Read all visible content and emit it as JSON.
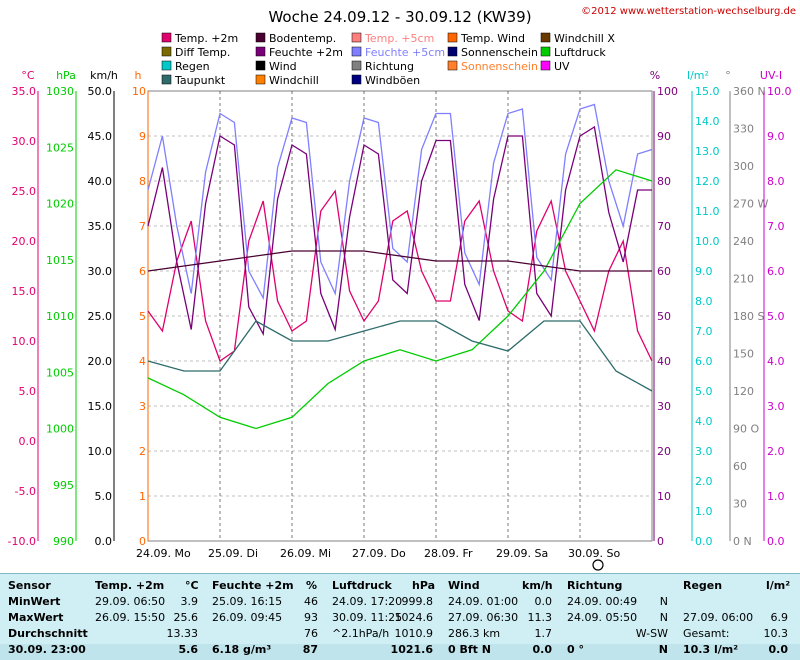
{
  "header": {
    "title": "Woche 24.09.12 - 30.09.12 (KW39)",
    "copyright": "©2012 www.wetterstation-wechselburg.de"
  },
  "legend": [
    {
      "label": "Temp. +2m",
      "color": "#e0006e"
    },
    {
      "label": "Bodentemp.",
      "color": "#4a0030"
    },
    {
      "label": "Temp. +5cm",
      "color": "#ff7f7f"
    },
    {
      "label": "Temp. Wind",
      "color": "#ff6600"
    },
    {
      "label": "Windchill X",
      "color": "#6b3a00"
    },
    {
      "label": "Diff Temp.",
      "color": "#7a6a00"
    },
    {
      "label": "Feuchte +2m",
      "color": "#7a007a"
    },
    {
      "label": "Feuchte +5cm",
      "color": "#7f7fff"
    },
    {
      "label": "Sonnenschein",
      "color": "#00006e"
    },
    {
      "label": "Luftdruck",
      "color": "#00cc00"
    },
    {
      "label": "Regen",
      "color": "#00c8c8"
    },
    {
      "label": "Wind",
      "color": "#000000"
    },
    {
      "label": "Richtung",
      "color": "#808080"
    },
    {
      "label": "Sonnenschein",
      "color": "#ff7f2a"
    },
    {
      "label": "UV",
      "color": "#ff00ff"
    },
    {
      "label": "Taupunkt",
      "color": "#2e6b6b"
    },
    {
      "label": "Windchill",
      "color": "#ff8000"
    },
    {
      "label": "Windböen",
      "color": "#000080"
    }
  ],
  "axes": {
    "units": {
      "celsius": "°C",
      "hpa": "hPa",
      "kmh": "km/h",
      "hours": "h",
      "percent": "%",
      "rain": "l/m²",
      "degree": "°",
      "uv": "UV-I"
    },
    "celsius_ticks": [
      "35.0",
      "30.0",
      "25.0",
      "20.0",
      "15.0",
      "10.0",
      "5.0",
      "0.0",
      "-5.0",
      "-10.0"
    ],
    "hpa_ticks": [
      "1030",
      "1025",
      "1020",
      "1015",
      "1010",
      "1005",
      "1000",
      "995",
      "990"
    ],
    "kmh_ticks": [
      "50.0",
      "45.0",
      "40.0",
      "35.0",
      "30.0",
      "25.0",
      "20.0",
      "15.0",
      "10.0",
      "5.0",
      "0.0"
    ],
    "hours_ticks": [
      "10",
      "9",
      "8",
      "7",
      "6",
      "5",
      "4",
      "3",
      "2",
      "1",
      "0"
    ],
    "percent_ticks": [
      "100",
      "90",
      "80",
      "70",
      "60",
      "50",
      "40",
      "30",
      "20",
      "10",
      "0"
    ],
    "rain_ticks": [
      "15.0",
      "14.0",
      "13.0",
      "12.0",
      "11.0",
      "10.0",
      "9.0",
      "8.0",
      "7.0",
      "6.0",
      "5.0",
      "4.0",
      "3.0",
      "2.0",
      "1.0",
      "0.0"
    ],
    "degree_ticks": [
      "360 N",
      "330",
      "300",
      "270 W",
      "240",
      "210",
      "180 S",
      "150",
      "120",
      "90  O",
      "60",
      "30",
      "0   N"
    ],
    "uv_ticks": [
      "10.0",
      "9.0",
      "8.0",
      "7.0",
      "6.0",
      "5.0",
      "4.0",
      "3.0",
      "2.0",
      "1.0",
      "0.0"
    ],
    "day_labels": [
      "24.09.  Mo",
      "25.09.  Di",
      "26.09.  Mi",
      "27.09.  Do",
      "28.09.  Fr",
      "29.09.  Sa",
      "30.09.  So"
    ]
  },
  "colors": {
    "celsius": "#e0006e",
    "hpa": "#00cc00",
    "kmh": "#000000",
    "hours": "#ff6600",
    "percent": "#7a007a",
    "rain": "#00c8c8",
    "degree": "#808080",
    "uv": "#cc00cc",
    "grid": "#808080",
    "dayline": "#404040"
  },
  "chart_data": {
    "type": "line",
    "title": "Woche 24.09.12 - 30.09.12 (KW39)",
    "x_range_days": [
      0,
      7
    ],
    "celsius_range": [
      -10,
      35
    ],
    "hpa_range": [
      990,
      1030
    ],
    "percent_range": [
      0,
      100
    ],
    "series": [
      {
        "name": "Temp. +2m",
        "axis": "celsius",
        "x": [
          0,
          0.2,
          0.4,
          0.6,
          0.8,
          1,
          1.2,
          1.4,
          1.6,
          1.8,
          2,
          2.2,
          2.4,
          2.6,
          2.8,
          3,
          3.2,
          3.4,
          3.6,
          3.8,
          4,
          4.2,
          4.4,
          4.6,
          4.8,
          5,
          5.2,
          5.4,
          5.6,
          5.8,
          6,
          6.2,
          6.4,
          6.6,
          6.8,
          7
        ],
        "values": [
          13,
          11,
          18,
          22,
          12,
          8,
          9,
          20,
          24,
          14,
          11,
          12,
          23,
          25,
          15,
          12,
          14,
          22,
          23,
          17,
          14,
          14,
          22,
          24,
          17,
          13,
          12,
          21,
          24,
          17,
          14,
          11,
          17,
          20,
          11,
          8
        ]
      },
      {
        "name": "Feuchte +2m",
        "axis": "percent",
        "x": [
          0,
          0.2,
          0.4,
          0.6,
          0.8,
          1,
          1.2,
          1.4,
          1.6,
          1.8,
          2,
          2.2,
          2.4,
          2.6,
          2.8,
          3,
          3.2,
          3.4,
          3.6,
          3.8,
          4,
          4.2,
          4.4,
          4.6,
          4.8,
          5,
          5.2,
          5.4,
          5.6,
          5.8,
          6,
          6.2,
          6.4,
          6.6,
          6.8,
          7
        ],
        "values": [
          70,
          83,
          62,
          47,
          75,
          90,
          88,
          52,
          46,
          76,
          88,
          86,
          55,
          47,
          72,
          88,
          86,
          58,
          55,
          80,
          89,
          89,
          57,
          49,
          76,
          90,
          90,
          55,
          50,
          78,
          90,
          92,
          73,
          62,
          78,
          78
        ]
      },
      {
        "name": "Feuchte +5cm",
        "axis": "percent",
        "x": [
          0,
          0.2,
          0.4,
          0.6,
          0.8,
          1,
          1.2,
          1.4,
          1.6,
          1.8,
          2,
          2.2,
          2.4,
          2.6,
          2.8,
          3,
          3.2,
          3.4,
          3.6,
          3.8,
          4,
          4.2,
          4.4,
          4.6,
          4.8,
          5,
          5.2,
          5.4,
          5.6,
          5.8,
          6,
          6.2,
          6.4,
          6.6,
          6.8,
          7
        ],
        "values": [
          78,
          90,
          70,
          55,
          82,
          95,
          93,
          60,
          54,
          83,
          94,
          93,
          62,
          55,
          80,
          94,
          93,
          65,
          62,
          87,
          95,
          95,
          64,
          57,
          84,
          95,
          96,
          63,
          58,
          86,
          96,
          97,
          80,
          70,
          86,
          87
        ]
      },
      {
        "name": "Luftdruck",
        "axis": "hpa",
        "x": [
          0,
          0.5,
          1,
          1.5,
          2,
          2.5,
          3,
          3.5,
          4,
          4.5,
          5,
          5.5,
          6,
          6.5,
          7
        ],
        "values": [
          1004.5,
          1003,
          1001,
          1000,
          1001,
          1004,
          1006,
          1007,
          1006,
          1007,
          1010,
          1014,
          1020,
          1023,
          1022
        ]
      },
      {
        "name": "Bodentemp.",
        "axis": "celsius",
        "x": [
          0,
          1,
          2,
          3,
          4,
          5,
          6,
          7
        ],
        "values": [
          17,
          18,
          19,
          19,
          18,
          18,
          17,
          17
        ]
      },
      {
        "name": "Taupunkt",
        "axis": "celsius",
        "x": [
          0,
          0.5,
          1,
          1.5,
          2,
          2.5,
          3,
          3.5,
          4,
          4.5,
          5,
          5.5,
          6,
          6.5,
          7
        ],
        "values": [
          8,
          7,
          7,
          12,
          10,
          10,
          11,
          12,
          12,
          10,
          9,
          12,
          12,
          7,
          5
        ]
      }
    ]
  },
  "table": {
    "headers": {
      "sensor": "Sensor",
      "temp": "Temp. +2m",
      "temp_unit": "°C",
      "hum": "Feuchte +2m",
      "hum_unit": "%",
      "press": "Luftdruck",
      "press_unit": "hPa",
      "wind": "Wind",
      "wind_unit": "km/h",
      "dir": "Richtung",
      "rain": "Regen",
      "rain_unit": "l/m²"
    },
    "rows": [
      {
        "label": "MinWert",
        "temp_time": "29.09.  06:50",
        "temp_val": "3.9",
        "hum_time": "25.09.  16:15",
        "hum_val": "46",
        "press_time": "24.09.  17:20",
        "press_val": "999.8",
        "wind_time": "24.09.  01:00",
        "wind_val": "0.0",
        "dir_time": "24.09.  00:49",
        "dir_val": "N",
        "rain_time": "",
        "rain_val": ""
      },
      {
        "label": "MaxWert",
        "temp_time": "26.09.  15:50",
        "temp_val": "25.6",
        "hum_time": "26.09.  09:45",
        "hum_val": "93",
        "press_time": "30.09.  11:25",
        "press_val": "1024.6",
        "wind_time": "27.09.  06:30",
        "wind_val": "11.3",
        "dir_time": "24.09.  05:50",
        "dir_val": "N",
        "rain_time": "27.09.  06:00",
        "rain_val": "6.9"
      },
      {
        "label": "Durchschnitt",
        "temp_time": "",
        "temp_val": "13.33",
        "hum_time": "",
        "hum_val": "76",
        "press_time": "^2.1hPa/h",
        "press_val": "1010.9",
        "wind_time": "286.3 km",
        "wind_val": "1.7",
        "dir_time": "",
        "dir_val": "W-SW",
        "rain_time": "Gesamt:",
        "rain_val": "10.3"
      },
      {
        "label": "30.09.  23:00",
        "temp_time": "",
        "temp_val": "5.6",
        "hum_time": "6.18 g/m³",
        "hum_val": "87",
        "press_time": "",
        "press_val": "1021.6",
        "wind_time": "0 Bft N",
        "wind_val": "0.0",
        "dir_time": "0 °",
        "dir_val": "N",
        "rain_time": "10.3 l/m²",
        "rain_val": "0.0"
      }
    ]
  }
}
